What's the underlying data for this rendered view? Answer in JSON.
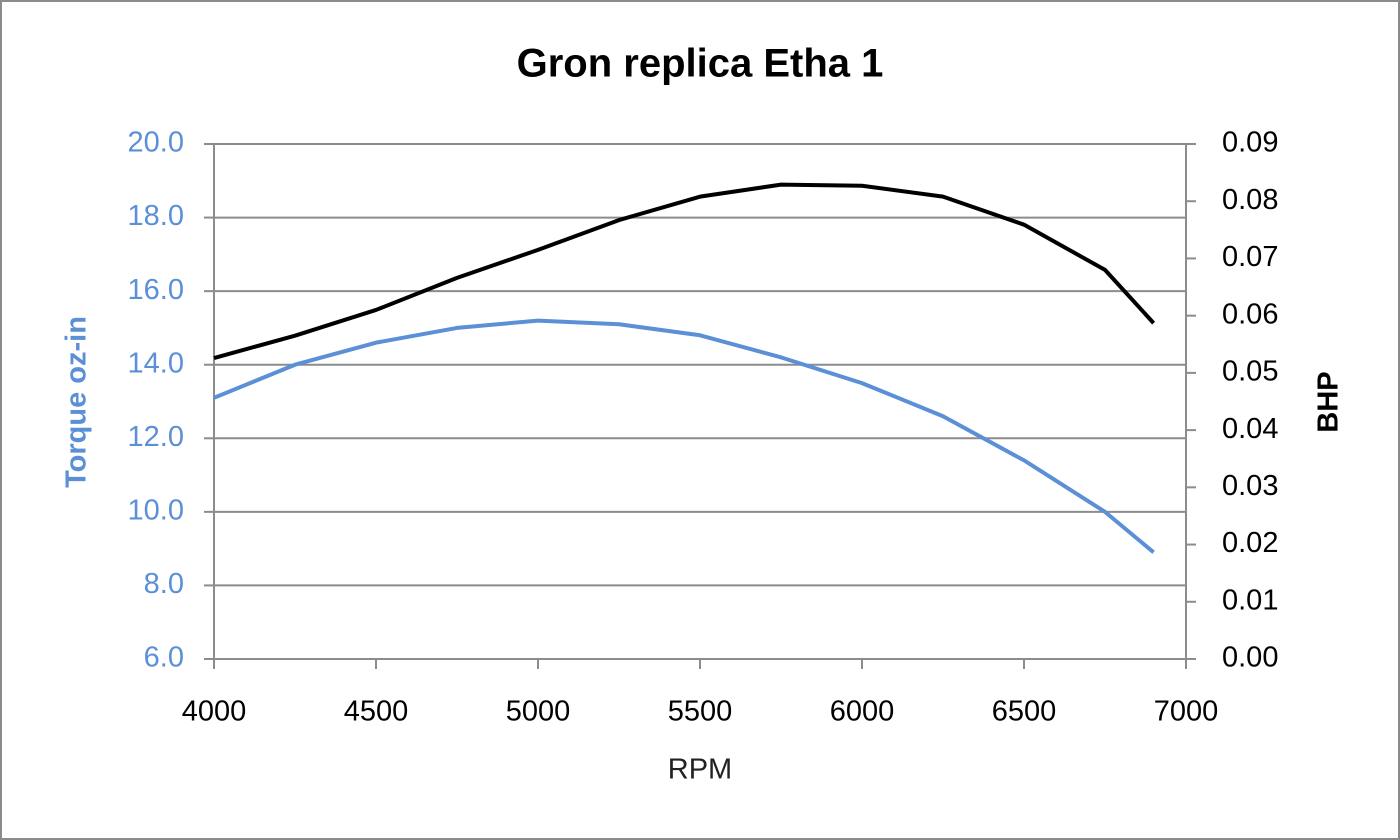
{
  "chart_data": {
    "type": "line",
    "title": "Gron replica Etha 1",
    "x_label": "RPM",
    "y_label": "Torque oz-in",
    "y2_label": "BHP",
    "x": [
      4000,
      4250,
      4500,
      4750,
      5000,
      5250,
      5500,
      5750,
      6000,
      6250,
      6500,
      6750,
      6900
    ],
    "series": [
      {
        "name": "Torque oz-in",
        "color": "#5b8fd6",
        "axis": "y",
        "values": [
          13.1,
          14.0,
          14.6,
          15.0,
          15.2,
          15.1,
          14.8,
          14.2,
          13.5,
          12.6,
          11.4,
          10.0,
          8.9
        ]
      },
      {
        "name": "BHP",
        "color": "#000000",
        "axis": "y2",
        "values": [
          0.0526,
          0.0565,
          0.061,
          0.0666,
          0.0715,
          0.0767,
          0.0808,
          0.0829,
          0.0827,
          0.0808,
          0.0759,
          0.068,
          0.0587
        ]
      }
    ],
    "xlim": [
      4000,
      7000
    ],
    "xticks": [
      4000,
      4500,
      5000,
      5500,
      6000,
      6500,
      7000
    ],
    "ylim": [
      6,
      20
    ],
    "yticks": [
      {
        "value": 6,
        "label": "6.0"
      },
      {
        "value": 8,
        "label": "8.0"
      },
      {
        "value": 10,
        "label": "10.0"
      },
      {
        "value": 12,
        "label": "12.0"
      },
      {
        "value": 14,
        "label": "14.0"
      },
      {
        "value": 16,
        "label": "16.0"
      },
      {
        "value": 18,
        "label": "18.0"
      },
      {
        "value": 20,
        "label": "20.0"
      }
    ],
    "y2lim": [
      0,
      0.09
    ],
    "y2ticks": [
      {
        "value": 0,
        "label": "0.00"
      },
      0.01,
      0.02,
      0.03,
      0.04,
      0.05,
      0.06,
      0.07,
      0.08,
      0.09
    ],
    "grid": true
  }
}
